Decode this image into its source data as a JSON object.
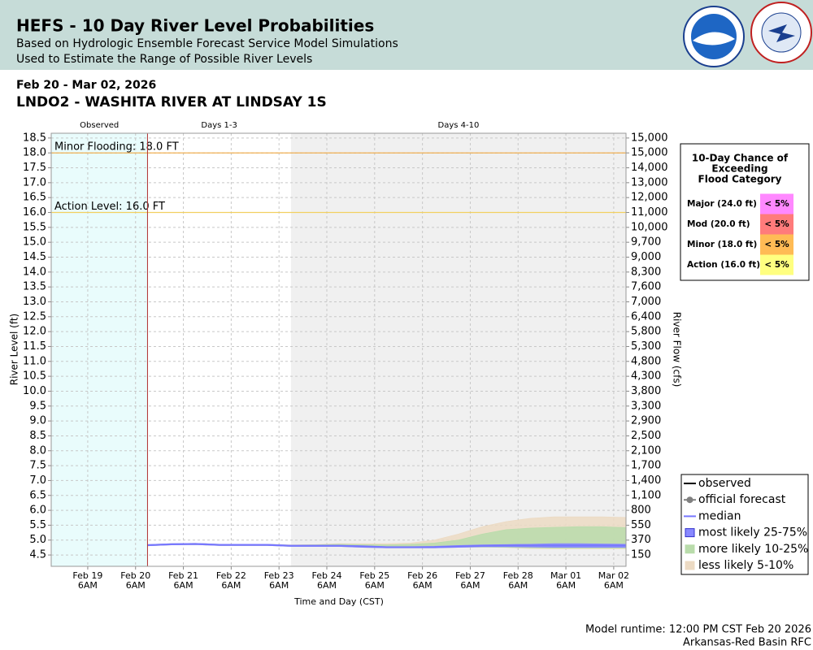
{
  "header": {
    "title": "HEFS - 10 Day River Level Probabilities",
    "subtitle": [
      "Based on Hydrologic Ensemble Forecast Service Model Simulations",
      "Used to Estimate the Range of Possible River Levels"
    ]
  },
  "date_range": "Feb 20 - Mar 02, 2026",
  "station": "LNDO2 - WASHITA RIVER AT LINDSAY 1S",
  "chart_data": {
    "type": "band",
    "ylabel": "River Level (ft)",
    "y2label": "River Flow (cfs)",
    "xlabel": "Time and Day (CST)",
    "xlim": [
      "2026-02-18T11:40",
      "2026-03-02T12:10"
    ],
    "xticks": [
      {
        "value": "2026-02-19T06:00",
        "label": [
          "Feb 19",
          "6AM"
        ]
      },
      {
        "value": "2026-02-20T06:00",
        "label": [
          "Feb 20",
          "6AM"
        ]
      },
      {
        "value": "2026-02-21T06:00",
        "label": [
          "Feb 21",
          "6AM"
        ]
      },
      {
        "value": "2026-02-22T06:00",
        "label": [
          "Feb 22",
          "6AM"
        ]
      },
      {
        "value": "2026-02-23T06:00",
        "label": [
          "Feb 23",
          "6AM"
        ]
      },
      {
        "value": "2026-02-24T06:00",
        "label": [
          "Feb 24",
          "6AM"
        ]
      },
      {
        "value": "2026-02-25T06:00",
        "label": [
          "Feb 25",
          "6AM"
        ]
      },
      {
        "value": "2026-02-26T06:00",
        "label": [
          "Feb 26",
          "6AM"
        ]
      },
      {
        "value": "2026-02-27T06:00",
        "label": [
          "Feb 27",
          "6AM"
        ]
      },
      {
        "value": "2026-02-28T06:00",
        "label": [
          "Feb 28",
          "6AM"
        ]
      },
      {
        "value": "2026-03-01T06:00",
        "label": [
          "Mar 01",
          "6AM"
        ]
      },
      {
        "value": "2026-03-02T06:00",
        "label": [
          "Mar 02",
          "6AM"
        ]
      }
    ],
    "ylim": [
      4.12,
      18.66
    ],
    "yticks": [
      18.5,
      {
        "value": 18,
        "label": "18.0"
      },
      17.5,
      {
        "value": 17,
        "label": "17.0"
      },
      16.5,
      {
        "value": 16,
        "label": "16.0"
      },
      15.5,
      {
        "value": 15,
        "label": "15.0"
      },
      14.5,
      {
        "value": 14,
        "label": "14.0"
      },
      13.5,
      {
        "value": 13,
        "label": "13.0"
      },
      12.5,
      {
        "value": 12,
        "label": "12.0"
      },
      11.5,
      {
        "value": 11,
        "label": "11.0"
      },
      10.5,
      {
        "value": 10,
        "label": "10.0"
      },
      9.5,
      {
        "value": 9,
        "label": "9.0"
      },
      8.5,
      {
        "value": 8,
        "label": "8.0"
      },
      7.5,
      {
        "value": 7,
        "label": "7.0"
      },
      6.5,
      {
        "value": 6,
        "label": "6.0"
      },
      5.5,
      {
        "value": 5,
        "label": "5.0"
      },
      4.5
    ],
    "y2ticks": [
      {
        "value": 15000,
        "label": "15,000"
      },
      {
        "value": 15000,
        "label": "15,000"
      },
      {
        "value": 14000,
        "label": "14,000"
      },
      {
        "value": 13000,
        "label": "13,000"
      },
      {
        "value": 12000,
        "label": "12,000"
      },
      {
        "value": 11000,
        "label": "11,000"
      },
      {
        "value": 10000,
        "label": "10,000"
      },
      {
        "value": 9700,
        "label": "9,700"
      },
      {
        "value": 9000,
        "label": "9,000"
      },
      {
        "value": 8300,
        "label": "8,300"
      },
      {
        "value": 7600,
        "label": "7,600"
      },
      {
        "value": 7000,
        "label": "7,000"
      },
      {
        "value": 6400,
        "label": "6,400"
      },
      {
        "value": 5800,
        "label": "5,800"
      },
      {
        "value": 5300,
        "label": "5,300"
      },
      {
        "value": 4800,
        "label": "4,800"
      },
      {
        "value": 4300,
        "label": "4,300"
      },
      {
        "value": 3800,
        "label": "3,800"
      },
      {
        "value": 3300,
        "label": "3,300"
      },
      {
        "value": 2900,
        "label": "2,900"
      },
      {
        "value": 2500,
        "label": "2,500"
      },
      {
        "value": 2100,
        "label": "2,100"
      },
      {
        "value": 1700,
        "label": "1,700"
      },
      {
        "value": 1400,
        "label": "1,400"
      },
      {
        "value": 1100,
        "label": "1,100"
      },
      800,
      550,
      370,
      150
    ],
    "grid": true,
    "regions": [
      {
        "label": "Observed",
        "start": "2026-02-18T11:40",
        "end": "2026-02-20T12:00",
        "color": "#e9fcfc"
      },
      {
        "label": "Days 1-3",
        "start": "2026-02-20T12:00",
        "end": "2026-02-23T12:00",
        "color": "#ffffff"
      },
      {
        "label": "Days 4-10",
        "start": "2026-02-23T12:00",
        "end": "2026-03-02T12:10",
        "color": "#f0f0f0"
      }
    ],
    "now_line": {
      "x": "2026-02-20T12:00",
      "color": "#b03030"
    },
    "thresholds": [
      {
        "label": "Minor Flooding: 18.0 FT",
        "value": 18,
        "color": "#f0a840"
      },
      {
        "label": "Action Level: 16.0 FT",
        "value": 16,
        "color": "#f2d060"
      }
    ],
    "x": [
      "2026-02-20T12:00",
      "2026-02-21T00:00",
      "2026-02-21T12:00",
      "2026-02-22T00:00",
      "2026-02-22T12:00",
      "2026-02-23T00:00",
      "2026-02-23T12:00",
      "2026-02-24T00:00",
      "2026-02-24T12:00",
      "2026-02-25T00:00",
      "2026-02-25T12:00",
      "2026-02-26T00:00",
      "2026-02-26T12:00",
      "2026-02-27T00:00",
      "2026-02-27T12:00",
      "2026-02-28T00:00",
      "2026-02-28T12:00",
      "2026-03-01T00:00",
      "2026-03-01T12:00",
      "2026-03-02T00:00",
      "2026-03-02T12:00"
    ],
    "series": [
      {
        "name": "observed",
        "color": "#000000",
        "style": "line",
        "values": [
          null,
          null,
          null,
          null,
          null,
          null,
          null,
          null,
          null,
          null,
          null,
          null,
          null,
          null,
          null,
          null,
          null,
          null,
          null,
          null,
          null
        ]
      },
      {
        "name": "official forecast",
        "color": "#808080",
        "style": "line-marker",
        "values": [
          null,
          null,
          null,
          null,
          null,
          null,
          null,
          null,
          null,
          null,
          null,
          null,
          null,
          null,
          null,
          null,
          null,
          null,
          null,
          null,
          null
        ]
      },
      {
        "name": "median",
        "color": "#7777ff",
        "style": "line",
        "values": [
          4.83,
          4.86,
          4.87,
          4.84,
          4.84,
          4.84,
          4.81,
          4.81,
          4.81,
          4.79,
          4.76,
          4.76,
          4.76,
          4.79,
          4.81,
          4.82,
          4.82,
          4.82,
          4.82,
          4.82,
          4.82
        ]
      },
      {
        "name": "most likely 25-75%",
        "color": "#8888ff",
        "style": "band",
        "values": [
          4.85,
          4.88,
          4.89,
          4.86,
          4.86,
          4.86,
          4.83,
          4.83,
          4.83,
          4.81,
          4.78,
          4.78,
          4.79,
          4.82,
          4.84,
          4.85,
          4.86,
          4.88,
          4.88,
          4.87,
          4.86
        ],
        "lower": [
          4.81,
          4.84,
          4.85,
          4.82,
          4.82,
          4.82,
          4.79,
          4.79,
          4.79,
          4.76,
          4.74,
          4.74,
          4.74,
          4.76,
          4.78,
          4.78,
          4.77,
          4.76,
          4.76,
          4.76,
          4.76
        ]
      },
      {
        "name": "more likely 10-25%",
        "color": "#b9dcab",
        "style": "band",
        "values": [
          4.85,
          4.88,
          4.89,
          4.86,
          4.86,
          4.86,
          4.83,
          4.84,
          4.86,
          4.85,
          4.84,
          4.86,
          4.9,
          5.0,
          5.2,
          5.35,
          5.4,
          5.43,
          5.45,
          5.45,
          5.42
        ],
        "lower": [
          4.81,
          4.84,
          4.85,
          4.82,
          4.82,
          4.82,
          4.79,
          4.79,
          4.79,
          4.76,
          4.74,
          4.74,
          4.74,
          4.76,
          4.77,
          4.76,
          4.74,
          4.73,
          4.73,
          4.73,
          4.73
        ]
      },
      {
        "name": "less likely 5-10%",
        "color": "#ecdac3",
        "style": "band",
        "values": [
          4.85,
          4.88,
          4.89,
          4.86,
          4.86,
          4.86,
          4.84,
          4.85,
          4.88,
          4.88,
          4.88,
          4.9,
          5.0,
          5.2,
          5.45,
          5.62,
          5.73,
          5.78,
          5.78,
          5.78,
          5.76
        ],
        "lower": [
          4.81,
          4.84,
          4.85,
          4.82,
          4.82,
          4.82,
          4.79,
          4.79,
          4.79,
          4.76,
          4.74,
          4.74,
          4.74,
          4.76,
          4.77,
          4.75,
          4.72,
          4.71,
          4.71,
          4.71,
          4.71
        ]
      }
    ]
  },
  "flood_table": {
    "title": [
      "10-Day Chance of",
      "Exceeding",
      "Flood Category"
    ],
    "rows": [
      {
        "category": "Major (24.0 ft)",
        "chance": "< 5%",
        "color": "#ff88ff"
      },
      {
        "category": "Mod (20.0 ft)",
        "chance": "< 5%",
        "color": "#ff7b7b"
      },
      {
        "category": "Minor (18.0 ft)",
        "chance": "< 5%",
        "color": "#ffbb55"
      },
      {
        "category": "Action (16.0 ft)",
        "chance": "< 5%",
        "color": "#ffff80"
      }
    ]
  },
  "footer": [
    "Model runtime: 12:00 PM CST Feb 20 2026",
    "Arkansas-Red Basin RFC"
  ]
}
